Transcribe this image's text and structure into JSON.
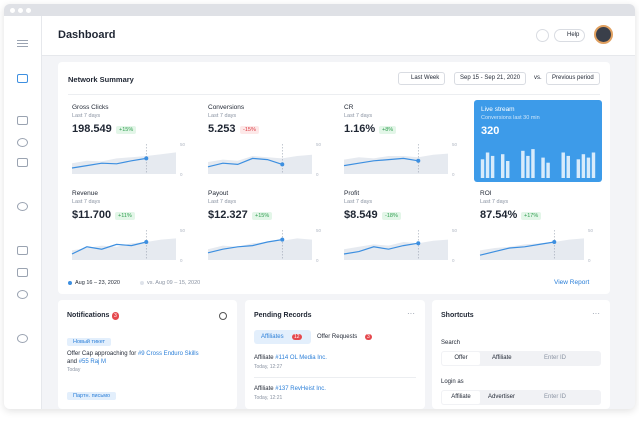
{
  "header": {
    "title": "Dashboard",
    "help": "Help"
  },
  "network_summary": {
    "title": "Network Summary",
    "period": "Last Week",
    "range": "Sep 15 - Sep 21, 2020",
    "vs": "vs.",
    "compare": "Previous period",
    "spark_ylim": [
      0,
      50
    ],
    "spark_yticks": [
      0,
      50
    ],
    "cards": [
      {
        "name": "Gross Clicks",
        "subtitle": "Last 7 days",
        "value": "198.549",
        "change": "+15%",
        "badge": "green",
        "current": [
          10,
          14,
          18,
          17,
          22,
          26
        ],
        "previous": [
          18,
          22,
          21,
          26,
          28,
          30,
          33,
          36
        ]
      },
      {
        "name": "Conversions",
        "subtitle": "Last 7 days",
        "value": "5.253",
        "change": "-15%",
        "badge": "red",
        "current": [
          12,
          18,
          16,
          26,
          24,
          16
        ],
        "previous": [
          20,
          24,
          22,
          30,
          28,
          26,
          30,
          32
        ]
      },
      {
        "name": "CR",
        "subtitle": "Last 7 days",
        "value": "1.16%",
        "change": "+8%",
        "badge": "green",
        "current": [
          14,
          18,
          22,
          24,
          26,
          22
        ],
        "previous": [
          24,
          28,
          26,
          30,
          30,
          28,
          32,
          34
        ]
      },
      {
        "name": "Revenue",
        "subtitle": "Last 7 days",
        "value": "$11.700",
        "change": "+11%",
        "badge": "green",
        "current": [
          10,
          22,
          18,
          26,
          24,
          30
        ],
        "previous": [
          16,
          20,
          24,
          22,
          28,
          30,
          34,
          36
        ]
      },
      {
        "name": "Payout",
        "subtitle": "Last 7 days",
        "value": "$12.327",
        "change": "+15%",
        "badge": "green",
        "current": [
          12,
          18,
          22,
          24,
          30,
          34
        ],
        "previous": [
          18,
          24,
          22,
          28,
          30,
          32,
          36,
          34
        ]
      },
      {
        "name": "Profit",
        "subtitle": "Last 7 days",
        "value": "$8.549",
        "change": "-18%",
        "badge": "green",
        "current": [
          10,
          14,
          22,
          18,
          24,
          28
        ],
        "previous": [
          18,
          22,
          26,
          24,
          30,
          28,
          32,
          34
        ]
      },
      {
        "name": "ROI",
        "subtitle": "Last 7 days",
        "value": "87.54%",
        "change": "+17%",
        "badge": "green",
        "current": [
          8,
          14,
          20,
          22,
          26,
          30
        ],
        "previous": [
          16,
          20,
          22,
          26,
          28,
          30,
          34,
          36
        ]
      }
    ],
    "live": {
      "name": "Live stream",
      "subtitle": "Conversions last 30 min",
      "value": "320",
      "ylim": [
        0,
        40
      ],
      "bars": [
        22,
        30,
        26,
        0,
        28,
        20,
        0,
        0,
        32,
        26,
        34,
        0,
        24,
        18,
        0,
        0,
        30,
        26,
        0,
        22,
        28,
        24,
        30
      ]
    },
    "legend": {
      "current": "Aug 16 – 23, 2020",
      "previous": "vs. Aug 09 – 15, 2020"
    },
    "view_report": "View Report"
  },
  "notifications": {
    "title": "Notifications",
    "count": "3",
    "items": [
      {
        "tag": "Новый тикет",
        "text": "Offer Cap approaching for",
        "link1": "#9 Cross Enduro Skills",
        "and": "and",
        "link2": "#55 Raj M",
        "time": "Today"
      },
      {
        "tag": "Партн. письмо"
      }
    ]
  },
  "pending": {
    "title": "Pending Records",
    "tabs": [
      {
        "label": "Affiliates",
        "count": "12"
      },
      {
        "label": "Offer Requests",
        "count": "3"
      }
    ],
    "rows": [
      {
        "label": "Affiliate",
        "link": "#114 OL Media Inc.",
        "time": "Today, 12:27"
      },
      {
        "label": "Affiliate",
        "link": "#137 RevHeist Inc.",
        "time": "Today, 12:21"
      }
    ]
  },
  "shortcuts": {
    "title": "Shortcuts",
    "search": {
      "label": "Search",
      "options": [
        "Offer",
        "Affiliate"
      ],
      "placeholder": "Enter ID"
    },
    "login": {
      "label": "Login as",
      "options": [
        "Affiliate",
        "Advertiser"
      ],
      "placeholder": "Enter ID"
    }
  }
}
